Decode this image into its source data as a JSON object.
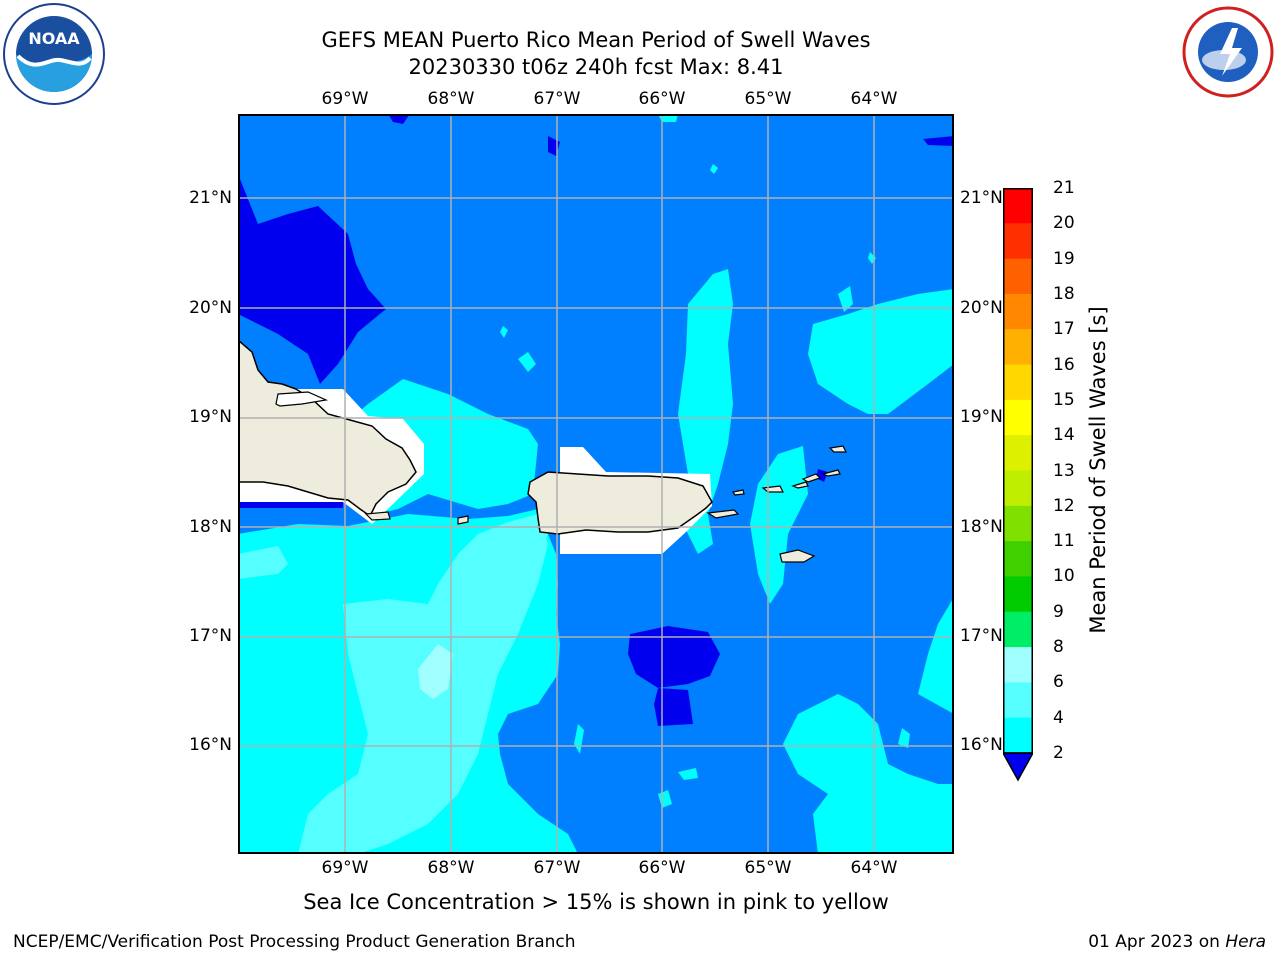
{
  "header": {
    "title_line1": "GEFS MEAN Puerto Rico Mean Period of Swell Waves",
    "title_line2": "20230330 t06z 240h fcst   Max: 8.41"
  },
  "logos": {
    "left": {
      "name": "NOAA",
      "icon": "noaa-logo-icon",
      "text": "NOAA"
    },
    "right": {
      "name": "NATIONAL WEATHER SERVICE",
      "icon": "nws-logo-icon"
    }
  },
  "map": {
    "lon_labels": [
      "69°W",
      "68°W",
      "67°W",
      "66°W",
      "65°W",
      "64°W"
    ],
    "lat_labels": [
      "21°N",
      "20°N",
      "19°N",
      "18°N",
      "17°N",
      "16°N"
    ],
    "gridline_color": "#b0b0b0",
    "land_color": "#eeecdc"
  },
  "colorbar": {
    "title": "Mean Period of Swell Waves [s]",
    "levels": [
      "21",
      "20",
      "19",
      "18",
      "17",
      "16",
      "15",
      "14",
      "13",
      "12",
      "11",
      "10",
      "9",
      "8",
      "6",
      "4",
      "2"
    ],
    "colors": [
      "#ff0000",
      "#ff3000",
      "#ff6000",
      "#ff8800",
      "#ffb000",
      "#ffd800",
      "#ffff00",
      "#ddf000",
      "#c0ee00",
      "#80e000",
      "#40d000",
      "#00cc00",
      "#00ee66",
      "#a0ffff",
      "#55ffff",
      "#00ffff",
      "#0080ff"
    ],
    "extend_color": "#0000ee"
  },
  "caption": "Sea Ice Concentration > 15% is shown in pink to yellow",
  "footer": {
    "left": "NCEP/EMC/Verification Post Processing Product Generation Branch",
    "right_prefix": "01 Apr 2023 on ",
    "right_host": "Hera"
  }
}
